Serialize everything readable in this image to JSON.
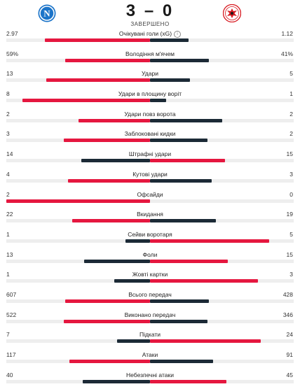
{
  "match": {
    "home_logo": "napoli-logo",
    "away_logo": "eintracht-frankfurt-logo",
    "score": "3 – 0",
    "status": "ЗАВЕРШЕНО"
  },
  "colors": {
    "leader": "#e5173f",
    "trailer": "#1c2a36",
    "track": "#eeeeee"
  },
  "stats": [
    {
      "label": "Очікувані голи (xG)",
      "home": "2.97",
      "away": "1.12",
      "home_share": 0.73,
      "info": true
    },
    {
      "label": "Володіння м'ячем",
      "home": "59%",
      "away": "41%",
      "home_share": 0.59
    },
    {
      "label": "Удари",
      "home": "13",
      "away": "5",
      "home_share": 0.72
    },
    {
      "label": "Удари в площину воріт",
      "home": "8",
      "away": "1",
      "home_share": 0.89
    },
    {
      "label": "Удари повз ворота",
      "home": "2",
      "away": "2",
      "home_share": 0.5
    },
    {
      "label": "Заблоковані кидки",
      "home": "3",
      "away": "2",
      "home_share": 0.6
    },
    {
      "label": "Штрафні удари",
      "home": "14",
      "away": "15",
      "home_share": 0.48
    },
    {
      "label": "Кутові удари",
      "home": "4",
      "away": "3",
      "home_share": 0.57
    },
    {
      "label": "Офсайди",
      "home": "2",
      "away": "0",
      "home_share": 1.0
    },
    {
      "label": "Вкидання",
      "home": "22",
      "away": "19",
      "home_share": 0.54
    },
    {
      "label": "Сейви воротаря",
      "home": "1",
      "away": "5",
      "home_share": 0.17
    },
    {
      "label": "Фоли",
      "home": "13",
      "away": "15",
      "home_share": 0.46
    },
    {
      "label": "Жовті картки",
      "home": "1",
      "away": "3",
      "home_share": 0.25
    },
    {
      "label": "Всього передач",
      "home": "607",
      "away": "428",
      "home_share": 0.59
    },
    {
      "label": "Виконано передач",
      "home": "522",
      "away": "346",
      "home_share": 0.6
    },
    {
      "label": "Підкати",
      "home": "7",
      "away": "24",
      "home_share": 0.23
    },
    {
      "label": "Атаки",
      "home": "117",
      "away": "91",
      "home_share": 0.56
    },
    {
      "label": "Небезпечні атаки",
      "home": "40",
      "away": "45",
      "home_share": 0.47
    }
  ]
}
